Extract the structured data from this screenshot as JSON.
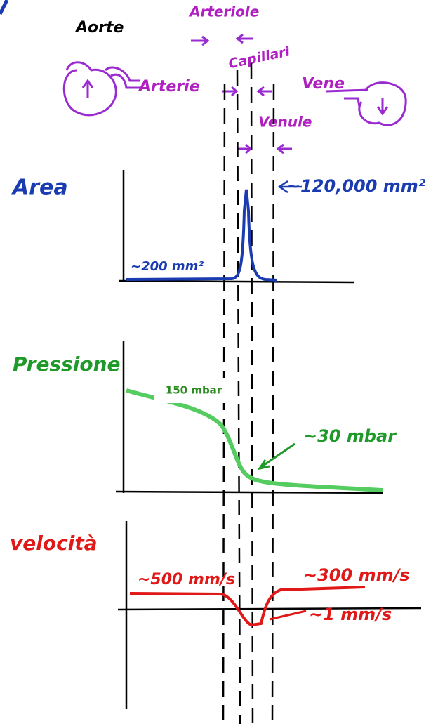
{
  "header": {
    "aorta": "Aorte",
    "arteriole": "Arteriole",
    "capillaries": "Capillari",
    "arteries": "Arterie",
    "veins": "Vene",
    "venules": "Venule"
  },
  "panels": [
    {
      "title": "Area",
      "annotations": [
        "~120,000 mm²",
        "~200 mm²"
      ]
    },
    {
      "title": "Pressione",
      "annotations": [
        "150 mbar",
        "~30 mbar"
      ]
    },
    {
      "title": "velocità",
      "annotations": [
        "~500 mm/s",
        "~300 mm/s",
        "~1 mm/s"
      ]
    }
  ]
}
